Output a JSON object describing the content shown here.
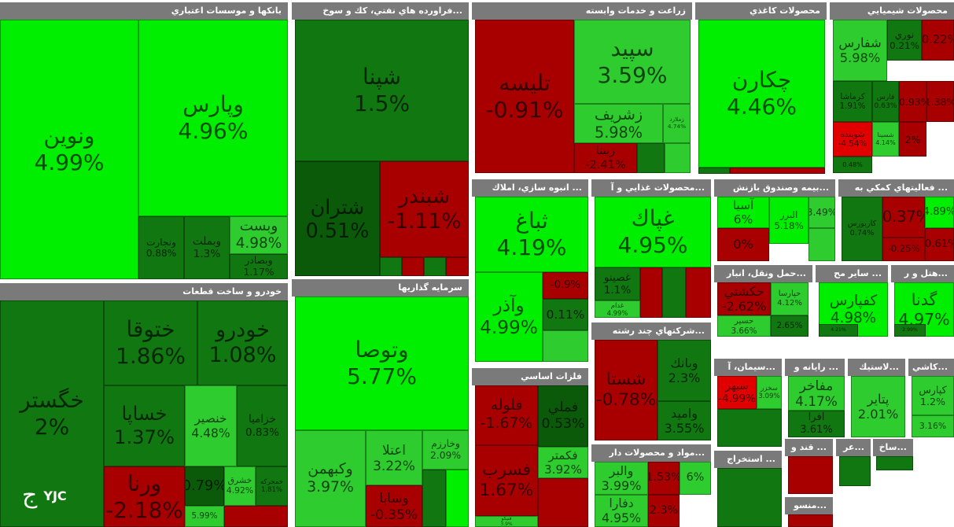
{
  "brand": {
    "logo_text": "YJC",
    "logo_glyph": "ج"
  },
  "colors": {
    "pos_bright": "#00ee00",
    "pos_mid": "#2ecc2e",
    "pos_dark": "#117711",
    "pos_darkest": "#0a5a0a",
    "neg": "#a80000",
    "neg_bright": "#e00000"
  },
  "chart_data": {
    "type": "treemap",
    "sectors": [
      {
        "name": "بانکها و موسسات اعتباري",
        "tiles": [
          {
            "name": "ونوين",
            "change": "4.99%",
            "value": 4.99
          },
          {
            "name": "وپارس",
            "change": "4.96%",
            "value": 4.96
          },
          {
            "name": "ونجارت",
            "change": "0.88%",
            "value": 0.88
          },
          {
            "name": "وبملت",
            "change": "1.3%",
            "value": 1.3
          },
          {
            "name": "وبست",
            "change": "4.98%",
            "value": 4.98
          },
          {
            "name": "وبصادر",
            "change": "1.17%",
            "value": 1.17
          }
        ]
      },
      {
        "name": "...فراورده هاي نفتي، كك و سوخ",
        "tiles": [
          {
            "name": "شپنا",
            "change": "1.5%",
            "value": 1.5
          },
          {
            "name": "شتران",
            "change": "0.51%",
            "value": 0.51
          },
          {
            "name": "شبندر",
            "change": "-1.11%",
            "value": -1.11
          }
        ]
      },
      {
        "name": "زراعت و خدمات وابسته",
        "tiles": [
          {
            "name": "تليسه",
            "change": "-0.91%",
            "value": -0.91
          },
          {
            "name": "سپيد",
            "change": "3.59%",
            "value": 3.59
          },
          {
            "name": "زشريف",
            "change": "5.98%",
            "value": 5.98
          },
          {
            "name": "زملارد",
            "change": "4.74%",
            "value": 4.74
          },
          {
            "name": "زبينا",
            "change": "-2.41%",
            "value": -2.41
          },
          {
            "name": "رفيام",
            "change": "0.85%",
            "value": 0.85
          }
        ]
      },
      {
        "name": "محصولات كاغذي",
        "tiles": [
          {
            "name": "چكارن",
            "change": "4.46%",
            "value": 4.46
          }
        ]
      },
      {
        "name": "محصولات شيميايي",
        "tiles": [
          {
            "name": "شفارس",
            "change": "5.98%",
            "value": 5.98
          },
          {
            "name": "نوري",
            "change": "0.21%",
            "value": 0.21
          },
          {
            "name": "",
            "change": "-0.22%",
            "value": -0.22
          },
          {
            "name": "كرماشا",
            "change": "1.91%",
            "value": 1.91
          },
          {
            "name": "فارس",
            "change": "0.63%",
            "value": 0.63
          },
          {
            "name": "",
            "change": "-0.93%",
            "value": -0.93
          },
          {
            "name": "",
            "change": "1.38%",
            "value": 1.38
          },
          {
            "name": "شوينده",
            "change": "-4.54%",
            "value": -4.54
          },
          {
            "name": "شسينا",
            "change": "4.14%",
            "value": 4.14
          },
          {
            "name": "",
            "change": "2%",
            "value": 2
          },
          {
            "name": "",
            "change": "0.48%",
            "value": 0.48
          }
        ]
      },
      {
        "name": "... انبوه سازي، املاك",
        "tiles": [
          {
            "name": "ثباغ",
            "change": "4.19%",
            "value": 4.19
          },
          {
            "name": "وآذر",
            "change": "4.99%",
            "value": 4.99
          },
          {
            "name": "",
            "change": "-0.9%",
            "value": -0.9
          },
          {
            "name": "",
            "change": "0.11%",
            "value": 0.11
          }
        ]
      },
      {
        "name": "...محصولات غذايي و آ",
        "tiles": [
          {
            "name": "غپاك",
            "change": "4.95%",
            "value": 4.95
          },
          {
            "name": "غصينو",
            "change": "1.1%",
            "value": 1.1
          },
          {
            "name": "غدام",
            "change": "4.99%",
            "value": 4.99
          }
        ]
      },
      {
        "name": "...بيمه وصندوق بازنش",
        "tiles": [
          {
            "name": "آسيا",
            "change": "6%",
            "value": 6
          },
          {
            "name": "البرز",
            "change": "5.18%",
            "value": 5.18
          },
          {
            "name": "",
            "change": "3.49%",
            "value": 3.49
          },
          {
            "name": "",
            "change": "0%",
            "value": 0
          }
        ]
      },
      {
        "name": "... فعاليتهاي كمكي به",
        "tiles": [
          {
            "name": "كاربورس",
            "change": "0.74%",
            "value": 0.74
          },
          {
            "name": "",
            "change": "-0.37%",
            "value": -0.37
          },
          {
            "name": "",
            "change": "4.89%",
            "value": 4.89
          },
          {
            "name": "",
            "change": "-0.25%",
            "value": -0.25
          },
          {
            "name": "",
            "change": "-0.61%",
            "value": -0.61
          }
        ]
      },
      {
        "name": "خودرو و ساخت قطعات",
        "tiles": [
          {
            "name": "خگستر",
            "change": "2%",
            "value": 2
          },
          {
            "name": "ختوقا",
            "change": "1.86%",
            "value": 1.86
          },
          {
            "name": "خودرو",
            "change": "1.08%",
            "value": 1.08
          },
          {
            "name": "خساپا",
            "change": "1.37%",
            "value": 1.37
          },
          {
            "name": "خنصير",
            "change": "4.48%",
            "value": 4.48
          },
          {
            "name": "خزاميا",
            "change": "0.83%",
            "value": 0.83
          },
          {
            "name": "ورنا",
            "change": "-2.18%",
            "value": -2.18
          },
          {
            "name": "",
            "change": "0.79%",
            "value": 0.79
          },
          {
            "name": "خشرق",
            "change": "4.92%",
            "value": 4.92
          },
          {
            "name": "خمحركه",
            "change": "1.81%",
            "value": 1.81
          },
          {
            "name": "",
            "change": "5.99%",
            "value": 5.99
          }
        ]
      },
      {
        "name": "سرمايه گذاريها",
        "tiles": [
          {
            "name": "وتوصا",
            "change": "5.77%",
            "value": 5.77
          },
          {
            "name": "وكبهمن",
            "change": "3.97%",
            "value": 3.97
          },
          {
            "name": "اعتلا",
            "change": "3.22%",
            "value": 3.22
          },
          {
            "name": "وسابا",
            "change": "-0.35%",
            "value": -0.35
          },
          {
            "name": "وخارزم",
            "change": "2.09%",
            "value": 2.09
          }
        ]
      },
      {
        "name": "...شركتهاي چند رشته",
        "tiles": [
          {
            "name": "شستا",
            "change": "-0.78%",
            "value": -0.78
          },
          {
            "name": "وبانك",
            "change": "2.3%",
            "value": 2.3
          },
          {
            "name": "واميد",
            "change": "3.55%",
            "value": 3.55
          }
        ]
      },
      {
        "name": "...حمل ونقل، انبار",
        "tiles": [
          {
            "name": "حكشتي",
            "change": "-2.62%",
            "value": -2.62
          },
          {
            "name": "حپارسا",
            "change": "4.12%",
            "value": 4.12
          },
          {
            "name": "حسير",
            "change": "3.66%",
            "value": 3.66
          },
          {
            "name": "",
            "change": "2.65%",
            "value": 2.65
          }
        ]
      },
      {
        "name": "... سایر مح",
        "tiles": [
          {
            "name": "كفپارس",
            "change": "4.98%",
            "value": 4.98
          },
          {
            "name": "",
            "change": "4.21%",
            "value": 4.21
          }
        ]
      },
      {
        "name": "...هتل و ر",
        "tiles": [
          {
            "name": "گدنا",
            "change": "4.97%",
            "value": 4.97
          },
          {
            "name": "",
            "change": "2.99%",
            "value": 2.99
          }
        ]
      },
      {
        "name": "فلزات اساسي",
        "tiles": [
          {
            "name": "فلوله",
            "change": "-1.67%",
            "value": -1.67
          },
          {
            "name": "فملي",
            "change": "0.53%",
            "value": 0.53
          },
          {
            "name": "فسرب",
            "change": "1.67%",
            "value": 1.67
          },
          {
            "name": "فكمتر",
            "change": "3.92%",
            "value": 3.92
          },
          {
            "name": "فنيكو",
            "change": "3.9%",
            "value": 3.9
          },
          {
            "name": "فنوال",
            "change": "2.02%",
            "value": 2.02
          }
        ]
      },
      {
        "name": "...سيمان، آ",
        "tiles": [
          {
            "name": "سبهر",
            "change": "-4.99%",
            "value": -4.99
          },
          {
            "name": "سخزر",
            "change": "3.09%",
            "value": 3.09
          }
        ]
      },
      {
        "name": "... رايانه و",
        "tiles": [
          {
            "name": "مفاخر",
            "change": "4.17%",
            "value": 4.17
          },
          {
            "name": "افرا",
            "change": "3.61%",
            "value": 3.61
          }
        ]
      },
      {
        "name": "...لاستيك",
        "tiles": [
          {
            "name": "پتاير",
            "change": "2.01%",
            "value": 2.01
          }
        ]
      },
      {
        "name": "...كاشي",
        "tiles": [
          {
            "name": "كپارس",
            "change": "1.2%",
            "value": 1.2
          },
          {
            "name": "",
            "change": "3.16%",
            "value": 3.16
          }
        ]
      },
      {
        "name": "...مواد و محصولات دار",
        "tiles": [
          {
            "name": "والبر",
            "change": "3.99%",
            "value": 3.99
          },
          {
            "name": "",
            "change": "1.53%",
            "value": 1.53
          },
          {
            "name": "",
            "change": "6%",
            "value": 6
          },
          {
            "name": "دفارا",
            "change": "4.95%",
            "value": 4.95
          },
          {
            "name": "",
            "change": "2.3%",
            "value": 2.3
          }
        ]
      },
      {
        "name": "... استخراج",
        "tiles": []
      },
      {
        "name": "... قند و",
        "tiles": []
      },
      {
        "name": "...عر",
        "tiles": []
      },
      {
        "name": "...ساخ",
        "tiles": []
      },
      {
        "name": "...منسو",
        "tiles": []
      }
    ]
  }
}
